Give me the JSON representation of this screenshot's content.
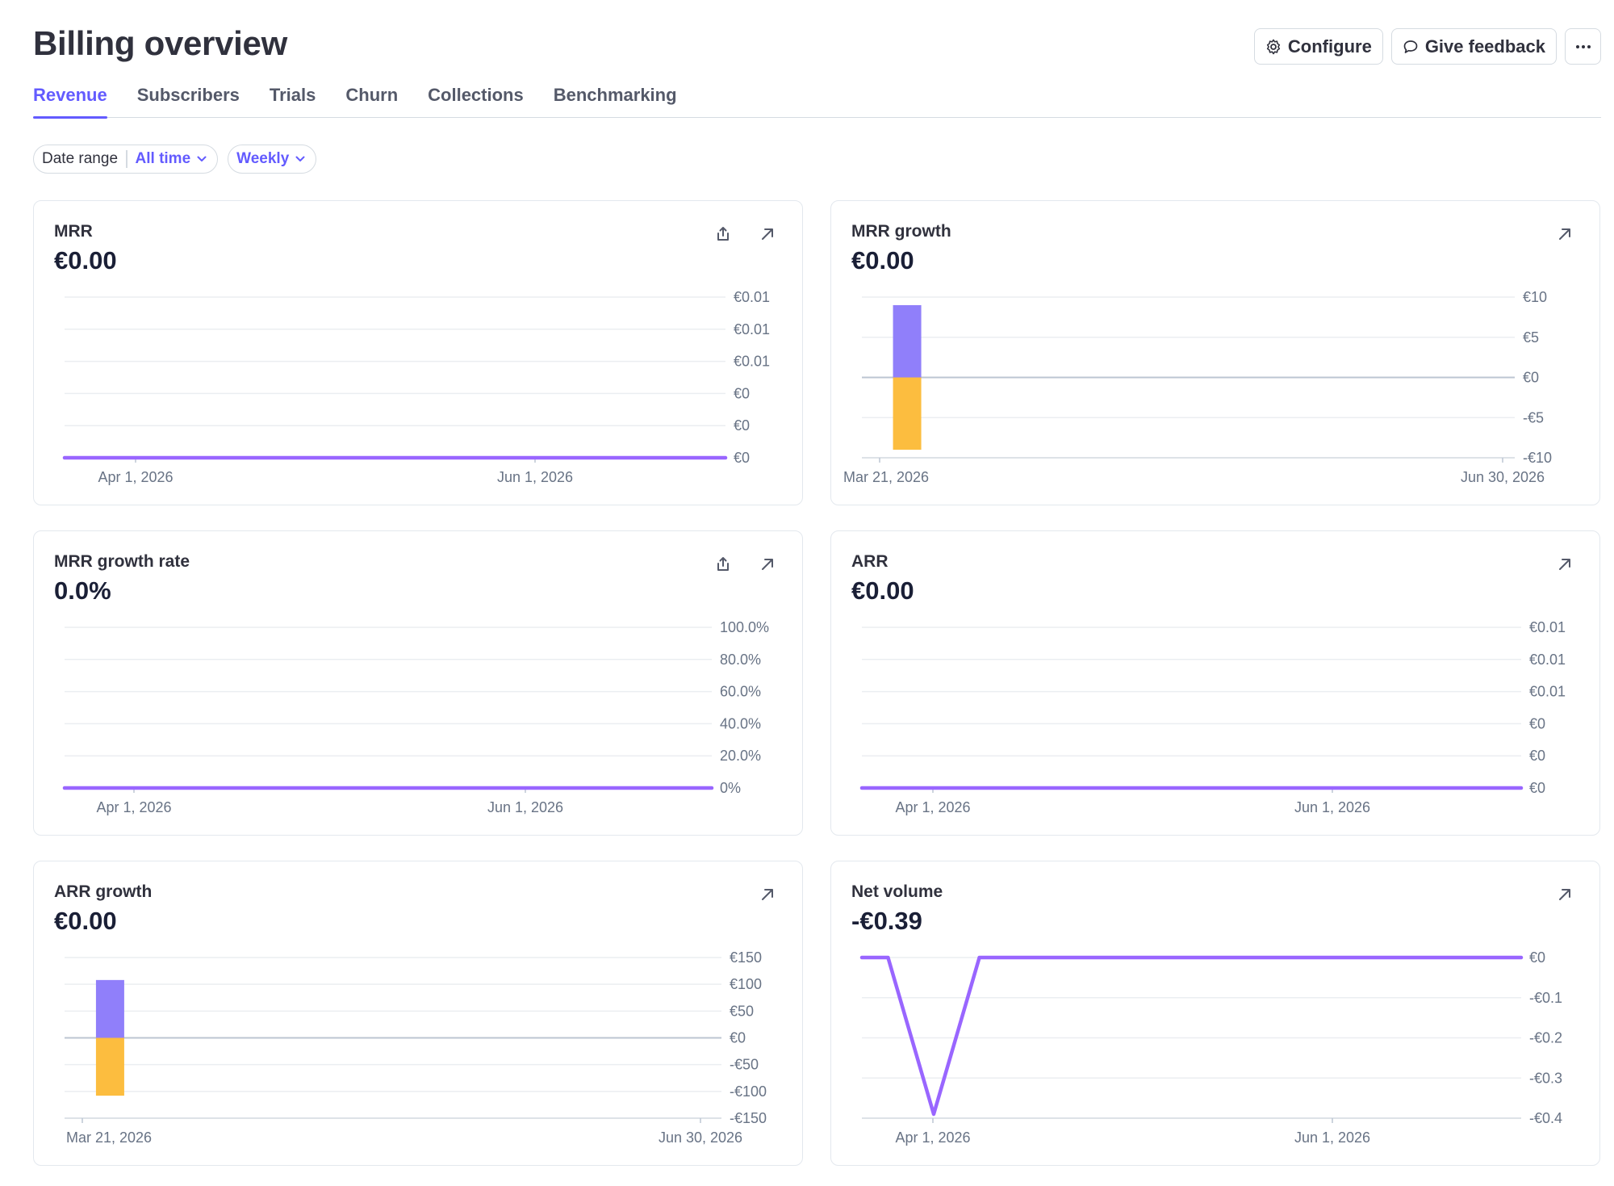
{
  "page": {
    "title": "Billing overview",
    "actions": {
      "configure": "Configure",
      "feedback": "Give feedback"
    }
  },
  "tabs": [
    "Revenue",
    "Subscribers",
    "Trials",
    "Churn",
    "Collections",
    "Benchmarking"
  ],
  "active_tab": 0,
  "filters": {
    "date_range_label": "Date range",
    "date_range_value": "All time",
    "interval_value": "Weekly"
  },
  "colors": {
    "accent": "#635bff",
    "line": "#9966ff",
    "positive": "#907ffa",
    "negative": "#fcbd3f"
  },
  "cards": [
    {
      "title": "MRR",
      "value": "€0.00",
      "has_export": true
    },
    {
      "title": "MRR growth",
      "value": "€0.00",
      "has_export": false
    },
    {
      "title": "MRR growth rate",
      "value": "0.0%",
      "has_export": true
    },
    {
      "title": "ARR",
      "value": "€0.00",
      "has_export": false
    },
    {
      "title": "ARR growth",
      "value": "€0.00",
      "has_export": false
    },
    {
      "title": "Net volume",
      "value": "-€0.39",
      "has_export": false
    }
  ],
  "chart_data": [
    {
      "type": "line",
      "title": "MRR",
      "x_ticks": [
        "Apr 1, 2026",
        "Jun 1, 2026"
      ],
      "y_ticks": [
        "€0.01",
        "€0.01",
        "€0.01",
        "€0",
        "€0",
        "€0"
      ],
      "ylim": [
        0,
        0.01
      ],
      "series": [
        {
          "x": [
            "Mar 21, 2026",
            "Jun 30, 2026"
          ],
          "values": [
            0,
            0
          ]
        }
      ],
      "grid": true
    },
    {
      "type": "bar",
      "title": "MRR growth",
      "x_ticks": [
        "Mar 21, 2026",
        "Jun 30, 2026"
      ],
      "y_ticks": [
        "€10",
        "€5",
        "€0",
        "-€5",
        "-€10"
      ],
      "ylim": [
        -10,
        10
      ],
      "bars": [
        {
          "x": "Mar 28, 2026",
          "positive": 9,
          "negative": -9
        }
      ],
      "grid": true
    },
    {
      "type": "line",
      "title": "MRR growth rate",
      "x_ticks": [
        "Apr 1, 2026",
        "Jun 1, 2026"
      ],
      "y_ticks": [
        "100.0%",
        "80.0%",
        "60.0%",
        "40.0%",
        "20.0%",
        "0%"
      ],
      "ylim": [
        0,
        100
      ],
      "series": [
        {
          "x": [
            "Mar 21, 2026",
            "Jun 30, 2026"
          ],
          "values": [
            0,
            0
          ]
        }
      ],
      "grid": true
    },
    {
      "type": "line",
      "title": "ARR",
      "x_ticks": [
        "Apr 1, 2026",
        "Jun 1, 2026"
      ],
      "y_ticks": [
        "€0.01",
        "€0.01",
        "€0.01",
        "€0",
        "€0",
        "€0"
      ],
      "ylim": [
        0,
        0.01
      ],
      "series": [
        {
          "x": [
            "Mar 21, 2026",
            "Jun 30, 2026"
          ],
          "values": [
            0,
            0
          ]
        }
      ],
      "grid": true
    },
    {
      "type": "bar",
      "title": "ARR growth",
      "x_ticks": [
        "Mar 21, 2026",
        "Jun 30, 2026"
      ],
      "y_ticks": [
        "€150",
        "€100",
        "€50",
        "€0",
        "-€50",
        "-€100",
        "-€150"
      ],
      "ylim": [
        -150,
        150
      ],
      "bars": [
        {
          "x": "Mar 28, 2026",
          "positive": 108,
          "negative": -108
        }
      ],
      "grid": true
    },
    {
      "type": "line",
      "title": "Net volume",
      "x_ticks": [
        "Apr 1, 2026",
        "Jun 1, 2026"
      ],
      "y_ticks": [
        "€0",
        "-€0.1",
        "-€0.2",
        "-€0.3",
        "-€0.4"
      ],
      "ylim": [
        -0.4,
        0
      ],
      "series": [
        {
          "x": [
            "Mar 21, 2026",
            "Mar 25, 2026",
            "Apr 1, 2026",
            "Apr 8, 2026",
            "Jun 30, 2026"
          ],
          "values": [
            0,
            0,
            -0.39,
            0,
            0
          ]
        }
      ],
      "grid": true
    }
  ]
}
